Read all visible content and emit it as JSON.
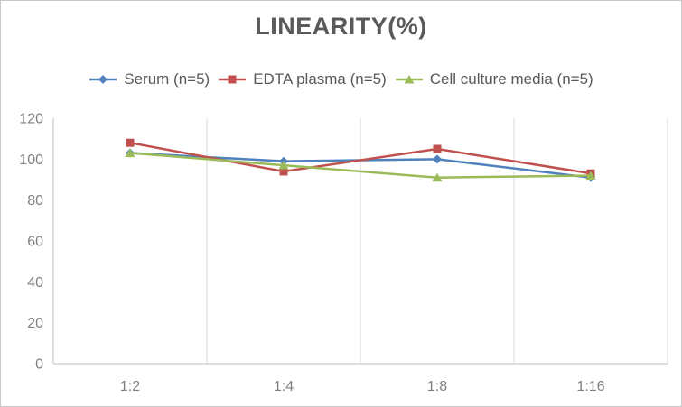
{
  "title": "LINEARITY(%)",
  "colors": {
    "title_text": "#595959",
    "legend_text": "#595959",
    "axis_text": "#7f7f7f",
    "gridline": "#d9d9d9",
    "axis_line": "#bfbfbf",
    "border": "#c8c8c8",
    "background": "#ffffff"
  },
  "chart_data": {
    "type": "line",
    "title": "LINEARITY(%)",
    "categories": [
      "1:2",
      "1:4",
      "1:8",
      "1:16"
    ],
    "series": [
      {
        "name": "Serum (n=5)",
        "color": "#4f81bd",
        "marker": "diamond",
        "values": [
          103,
          99,
          100,
          91
        ]
      },
      {
        "name": "EDTA plasma (n=5)",
        "color": "#c0504d",
        "marker": "square",
        "values": [
          108,
          94,
          105,
          93
        ]
      },
      {
        "name": "Cell culture media (n=5)",
        "color": "#9bbb59",
        "marker": "triangle",
        "values": [
          103,
          97,
          91,
          92
        ]
      }
    ],
    "xlabel": "",
    "ylabel": "",
    "ylim": [
      0,
      120
    ],
    "yticks": [
      0,
      20,
      40,
      60,
      80,
      100,
      120
    ],
    "grid": "vertical-only",
    "legend_position": "top"
  }
}
